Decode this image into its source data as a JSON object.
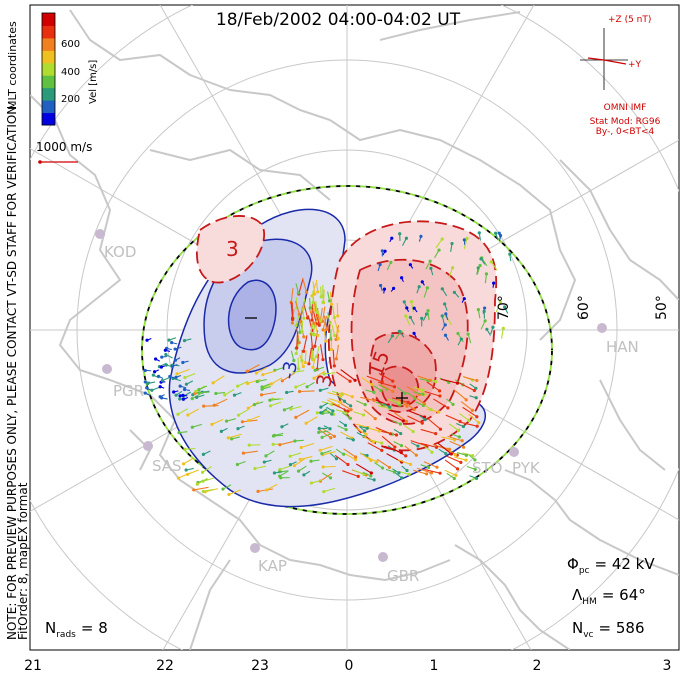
{
  "title": "18/Feb/2002 04:00-04:02 UT",
  "colorbar": {
    "label": "Vel [m/s]",
    "ticks": [
      "600",
      "400",
      "200"
    ],
    "colors": [
      "#0000e0",
      "#2060c0",
      "#2a9a7a",
      "#60c040",
      "#b0dc30",
      "#f0c020",
      "#f08020",
      "#e83010",
      "#d00000"
    ]
  },
  "coords_label": "MLT coordinates",
  "scale_vector_label": "1000 m/s",
  "imf": {
    "z_label": "+Z (5 nT)",
    "y_label": "+Y",
    "source": "OMNI IMF",
    "model_line1": "Stat Mod: RG96",
    "model_line2": "By-, 0<BT<4"
  },
  "note_line1": "NOTE: FOR PREVIEW PURPOSES ONLY, PLEASE CONTACT VT-SD STAFF FOR VERIFICATION.",
  "note_line2": "FitOrder: 8, mapEX format",
  "stations": [
    "KOD",
    "PGR",
    "SAS",
    "KAP",
    "GBR",
    "STO",
    "PYK",
    "HAN"
  ],
  "lat_labels": [
    "50°",
    "60°",
    "70°"
  ],
  "contour_labels": [
    "3",
    "15",
    "-3"
  ],
  "stats": {
    "phi_symbol": "Φ",
    "phi_sub": "pc",
    "phi_value": "= 42 kV",
    "lambda_symbol": "Λ",
    "lambda_sub": "HM",
    "lambda_value": "= 64°",
    "nvc_symbol": "N",
    "nvc_sub": "vc",
    "nvc_value": "= 586",
    "nrads_symbol": "N",
    "nrads_sub": "rads",
    "nrads_value": "= 8"
  },
  "chart_data": {
    "type": "map",
    "title": "18/Feb/2002 04:00-04:02 UT",
    "mlt_ticks": [
      "21",
      "22",
      "23",
      "0",
      "1",
      "2",
      "3"
    ],
    "latitude_circles_deg": [
      50,
      60,
      70,
      80
    ],
    "heppner_maynard_boundary_deg": 64,
    "cross_polar_cap_potential_kV": 42,
    "num_vectors": 586,
    "num_radars": 8,
    "potential_min_marker_MLT": 23.2,
    "potential_max_marker_MLT": 0.6
  }
}
